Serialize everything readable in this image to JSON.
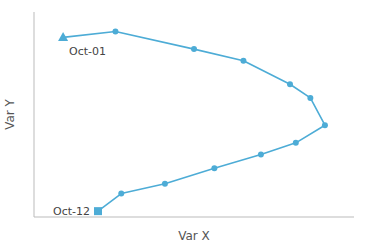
{
  "chart_data": {
    "type": "line",
    "xlabel": "Var X",
    "ylabel": "Var Y",
    "x": [
      1.0,
      2.8,
      5.5,
      7.2,
      8.8,
      9.5,
      10.0,
      9.0,
      7.8,
      6.2,
      4.5,
      3.0,
      2.2
    ],
    "series": [
      {
        "color": "#4dacd6",
        "marker": "circle",
        "values": [
          9.2,
          9.5,
          8.6,
          8.0,
          6.8,
          6.1,
          4.7,
          3.8,
          3.2,
          2.5,
          1.7,
          1.2,
          0.3
        ]
      }
    ],
    "xlim": [
      0,
      11.0
    ],
    "ylim": [
      0,
      10.5
    ],
    "annotations": [
      {
        "text": "Oct-01",
        "x": 1.0,
        "y": 9.2
      },
      {
        "text": "Oct-12",
        "x": 2.2,
        "y": 0.3
      }
    ],
    "tick_labels": false,
    "grid": false
  }
}
